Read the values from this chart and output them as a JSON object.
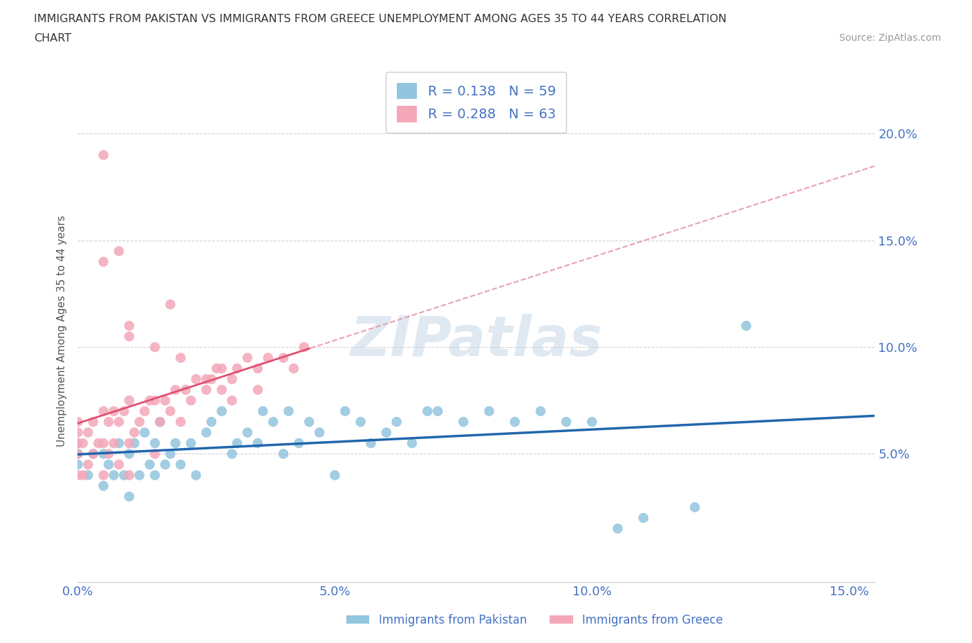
{
  "title_line1": "IMMIGRANTS FROM PAKISTAN VS IMMIGRANTS FROM GREECE UNEMPLOYMENT AMONG AGES 35 TO 44 YEARS CORRELATION",
  "title_line2": "CHART",
  "source": "Source: ZipAtlas.com",
  "ylabel": "Unemployment Among Ages 35 to 44 years",
  "xlim": [
    0.0,
    0.155
  ],
  "ylim": [
    -0.01,
    0.225
  ],
  "xticks": [
    0.0,
    0.05,
    0.1,
    0.15
  ],
  "xticklabels": [
    "0.0%",
    "5.0%",
    "10.0%",
    "15.0%"
  ],
  "yticks": [
    0.05,
    0.1,
    0.15,
    0.2
  ],
  "yticklabels": [
    "5.0%",
    "10.0%",
    "15.0%",
    "20.0%"
  ],
  "pakistan_color": "#92C5DE",
  "greece_color": "#F4A7B9",
  "pakistan_R": 0.138,
  "pakistan_N": 59,
  "greece_R": 0.288,
  "greece_N": 63,
  "trend_pakistan_color": "#2166AC",
  "trend_greece_color": "#E05070",
  "trend_greece_dashed_color": "#E8A0B0",
  "watermark": "ZIPatlas",
  "watermark_color": "#C8D8E8",
  "background_color": "#FFFFFF",
  "legend_label_pakistan": "Immigrants from Pakistan",
  "legend_label_greece": "Immigrants from Greece",
  "pakistan_x": [
    0.0,
    0.0,
    0.0,
    0.002,
    0.003,
    0.005,
    0.005,
    0.006,
    0.007,
    0.008,
    0.009,
    0.01,
    0.01,
    0.011,
    0.012,
    0.013,
    0.014,
    0.015,
    0.015,
    0.016,
    0.017,
    0.018,
    0.019,
    0.02,
    0.022,
    0.023,
    0.025,
    0.026,
    0.028,
    0.03,
    0.031,
    0.033,
    0.035,
    0.036,
    0.038,
    0.04,
    0.041,
    0.043,
    0.045,
    0.047,
    0.05,
    0.052,
    0.055,
    0.057,
    0.06,
    0.062,
    0.065,
    0.068,
    0.07,
    0.075,
    0.08,
    0.085,
    0.09,
    0.095,
    0.1,
    0.105,
    0.11,
    0.12,
    0.13
  ],
  "pakistan_y": [
    0.045,
    0.05,
    0.055,
    0.04,
    0.05,
    0.035,
    0.05,
    0.045,
    0.04,
    0.055,
    0.04,
    0.03,
    0.05,
    0.055,
    0.04,
    0.06,
    0.045,
    0.04,
    0.055,
    0.065,
    0.045,
    0.05,
    0.055,
    0.045,
    0.055,
    0.04,
    0.06,
    0.065,
    0.07,
    0.05,
    0.055,
    0.06,
    0.055,
    0.07,
    0.065,
    0.05,
    0.07,
    0.055,
    0.065,
    0.06,
    0.04,
    0.07,
    0.065,
    0.055,
    0.06,
    0.065,
    0.055,
    0.07,
    0.07,
    0.065,
    0.07,
    0.065,
    0.07,
    0.065,
    0.065,
    0.015,
    0.02,
    0.025,
    0.11
  ],
  "greece_x": [
    0.0,
    0.0,
    0.0,
    0.0,
    0.0,
    0.001,
    0.001,
    0.002,
    0.002,
    0.003,
    0.003,
    0.004,
    0.005,
    0.005,
    0.005,
    0.006,
    0.006,
    0.007,
    0.007,
    0.008,
    0.008,
    0.009,
    0.01,
    0.01,
    0.01,
    0.011,
    0.012,
    0.013,
    0.014,
    0.015,
    0.015,
    0.016,
    0.017,
    0.018,
    0.019,
    0.02,
    0.021,
    0.022,
    0.023,
    0.025,
    0.026,
    0.027,
    0.028,
    0.03,
    0.031,
    0.033,
    0.035,
    0.037,
    0.04,
    0.042,
    0.044,
    0.005,
    0.008,
    0.01,
    0.015,
    0.018,
    0.02,
    0.025,
    0.028,
    0.03,
    0.035,
    0.005,
    0.01
  ],
  "greece_y": [
    0.04,
    0.05,
    0.055,
    0.06,
    0.065,
    0.04,
    0.055,
    0.045,
    0.06,
    0.05,
    0.065,
    0.055,
    0.04,
    0.055,
    0.07,
    0.05,
    0.065,
    0.055,
    0.07,
    0.045,
    0.065,
    0.07,
    0.04,
    0.055,
    0.075,
    0.06,
    0.065,
    0.07,
    0.075,
    0.05,
    0.075,
    0.065,
    0.075,
    0.07,
    0.08,
    0.065,
    0.08,
    0.075,
    0.085,
    0.08,
    0.085,
    0.09,
    0.09,
    0.085,
    0.09,
    0.095,
    0.09,
    0.095,
    0.095,
    0.09,
    0.1,
    0.19,
    0.145,
    0.105,
    0.1,
    0.12,
    0.095,
    0.085,
    0.08,
    0.075,
    0.08,
    0.14,
    0.11
  ]
}
